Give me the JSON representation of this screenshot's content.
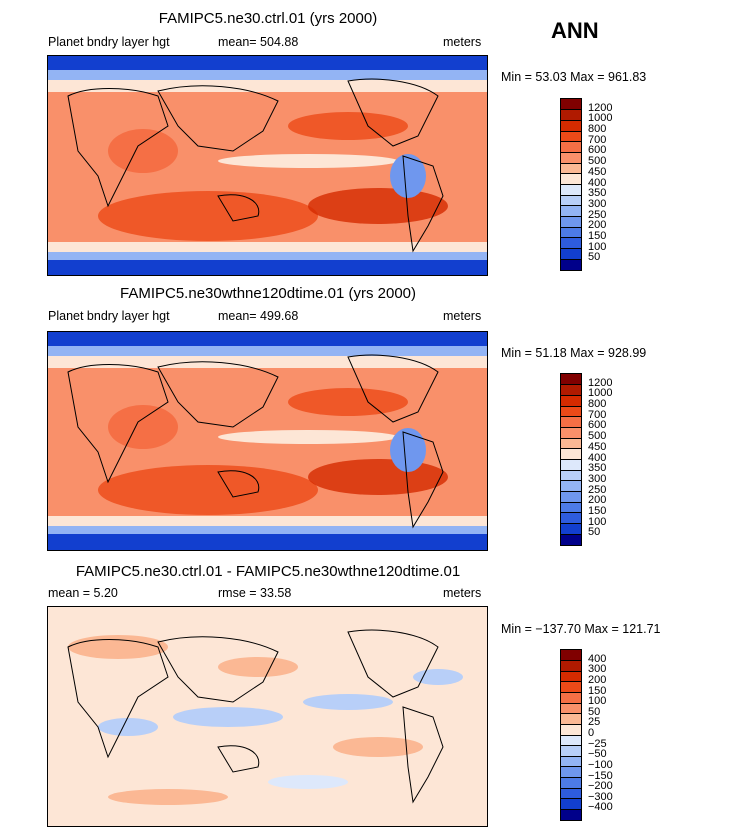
{
  "season": "ANN",
  "panels": [
    {
      "title": "FAMIPC5.ne30.ctrl.01 (yrs 2000)",
      "left_label": "Planet bndry layer hgt",
      "mid_label": "mean=  504.88",
      "right_label": "meters",
      "minmax": "Min =   53.03  Max =  961.83",
      "levels": [
        "1200",
        "1000",
        "800",
        "700",
        "600",
        "500",
        "450",
        "400",
        "350",
        "300",
        "250",
        "200",
        "150",
        "100",
        "50"
      ],
      "colors": [
        "#800000",
        "#b01a00",
        "#d52b00",
        "#ec4a18",
        "#f56f45",
        "#f9906a",
        "#fbb894",
        "#fde6d6",
        "#dde8fb",
        "#b8cff8",
        "#93b4f4",
        "#6f97ee",
        "#4d7be7",
        "#2e5cde",
        "#123fcf",
        "#00008a"
      ]
    },
    {
      "title": "FAMIPC5.ne30wthne120dtime.01 (yrs 2000)",
      "left_label": "Planet bndry layer hgt",
      "mid_label": "mean=  499.68",
      "right_label": "meters",
      "minmax": "Min =   51.18  Max =  928.99",
      "levels": [
        "1200",
        "1000",
        "800",
        "700",
        "600",
        "500",
        "450",
        "400",
        "350",
        "300",
        "250",
        "200",
        "150",
        "100",
        "50"
      ],
      "colors": [
        "#800000",
        "#b01a00",
        "#d52b00",
        "#ec4a18",
        "#f56f45",
        "#f9906a",
        "#fbb894",
        "#fde6d6",
        "#dde8fb",
        "#b8cff8",
        "#93b4f4",
        "#6f97ee",
        "#4d7be7",
        "#2e5cde",
        "#123fcf",
        "#00008a"
      ]
    },
    {
      "title": "FAMIPC5.ne30.ctrl.01 - FAMIPC5.ne30wthne120dtime.01",
      "left_label": "mean =     5.20",
      "mid_label": "rmse =   33.58",
      "right_label": "meters",
      "minmax": "Min = −137.70  Max =  121.71",
      "levels": [
        "400",
        "300",
        "200",
        "150",
        "100",
        "50",
        "25",
        "0",
        "−25",
        "−50",
        "−100",
        "−150",
        "−200",
        "−300",
        "−400"
      ],
      "colors": [
        "#800000",
        "#b01a00",
        "#d52b00",
        "#ec4a18",
        "#f56f45",
        "#f9906a",
        "#fbb894",
        "#fde6d6",
        "#dde8fb",
        "#b8cff8",
        "#93b4f4",
        "#6f97ee",
        "#4d7be7",
        "#2e5cde",
        "#123fcf",
        "#00008a"
      ]
    }
  ]
}
